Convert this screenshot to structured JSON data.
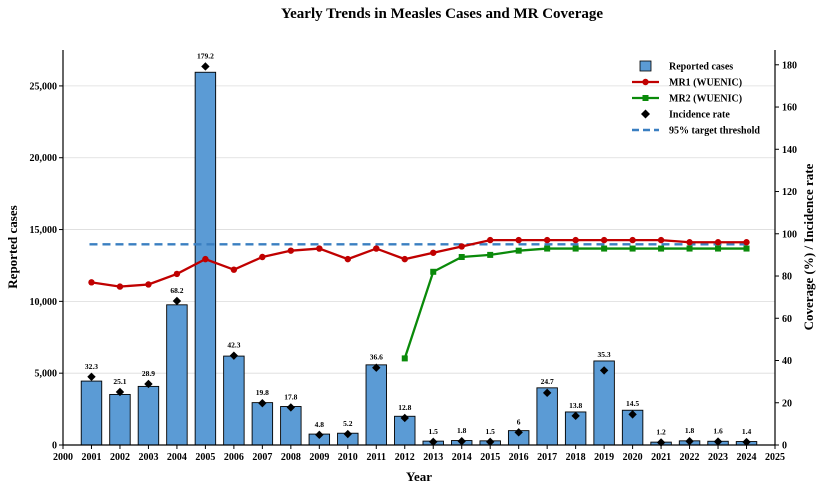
{
  "chart_data": {
    "type": "bar",
    "title": "Yearly Trends in Measles Cases and MR Coverage",
    "xlabel": "Year",
    "ylabel": "Reported cases",
    "y2label": "Coverage (%) / Incidence rate",
    "xlim": [
      2000,
      2025
    ],
    "ylim": [
      0,
      27500
    ],
    "y2lim": [
      0,
      187
    ],
    "x_ticks": [
      2000,
      2001,
      2002,
      2003,
      2004,
      2005,
      2006,
      2007,
      2008,
      2009,
      2010,
      2011,
      2012,
      2013,
      2014,
      2015,
      2016,
      2017,
      2018,
      2019,
      2020,
      2021,
      2022,
      2023,
      2024,
      2025
    ],
    "y_ticks": [
      0,
      5000,
      10000,
      15000,
      20000,
      25000
    ],
    "y_tick_labels": [
      "0",
      "5,000",
      "10,000",
      "15,000",
      "20,000",
      "25,000"
    ],
    "y2_ticks": [
      0,
      20,
      40,
      60,
      80,
      100,
      120,
      140,
      160,
      180
    ],
    "x": [
      2001,
      2002,
      2003,
      2004,
      2005,
      2006,
      2007,
      2008,
      2009,
      2010,
      2011,
      2012,
      2013,
      2014,
      2015,
      2016,
      2017,
      2018,
      2019,
      2020,
      2021,
      2022,
      2023,
      2024
    ],
    "grid": "horizontal",
    "legend_position": "top-right",
    "series": [
      {
        "name": "Reported cases",
        "kind": "bar",
        "axis": "left",
        "color": "#5b9bd5",
        "values": [
          4450,
          3520,
          4080,
          9760,
          25950,
          6190,
          2950,
          2680,
          760,
          820,
          5580,
          2000,
          270,
          310,
          290,
          1000,
          3980,
          2300,
          5850,
          2420,
          200,
          290,
          260,
          240
        ]
      },
      {
        "name": "MR1 (WUENIC)",
        "kind": "line",
        "axis": "right",
        "color": "#c00000",
        "marker": "circle",
        "values": [
          77,
          75,
          76,
          81,
          88,
          83,
          89,
          92,
          93,
          88,
          93,
          88,
          91,
          94,
          97,
          97,
          97,
          97,
          97,
          97,
          97,
          96,
          96,
          96
        ]
      },
      {
        "name": "MR2 (WUENIC)",
        "kind": "line",
        "axis": "right",
        "color": "#0a8a0a",
        "marker": "square",
        "x": [
          2012,
          2013,
          2014,
          2015,
          2016,
          2017,
          2018,
          2019,
          2020,
          2021,
          2022,
          2023,
          2024
        ],
        "values": [
          41,
          82,
          89,
          90,
          92,
          93,
          93,
          93,
          93,
          93,
          93,
          93,
          93
        ]
      },
      {
        "name": "Incidence rate",
        "kind": "scatter",
        "axis": "right",
        "color": "#000000",
        "marker": "diamond",
        "values": [
          32.3,
          25.1,
          28.9,
          68.2,
          179.2,
          42.3,
          19.8,
          17.8,
          4.8,
          5.2,
          36.6,
          12.8,
          1.5,
          1.8,
          1.5,
          6,
          24.7,
          13.8,
          35.3,
          14.5,
          1.2,
          1.8,
          1.6,
          1.4
        ],
        "labels": [
          "32.3",
          "25.1",
          "28.9",
          "68.2",
          "179.2",
          "42.3",
          "19.8",
          "17.8",
          "4.8",
          "5.2",
          "36.6",
          "12.8",
          "1.5",
          "1.8",
          "1.5",
          "6",
          "24.7",
          "13.8",
          "35.3",
          "14.5",
          "1.2",
          "1.8",
          "1.6",
          "1.4"
        ]
      }
    ],
    "reference_lines": [
      {
        "name": "95% target threshold",
        "axis": "right",
        "value": 95,
        "color": "#3a7fc1",
        "style": "dashed"
      }
    ]
  }
}
